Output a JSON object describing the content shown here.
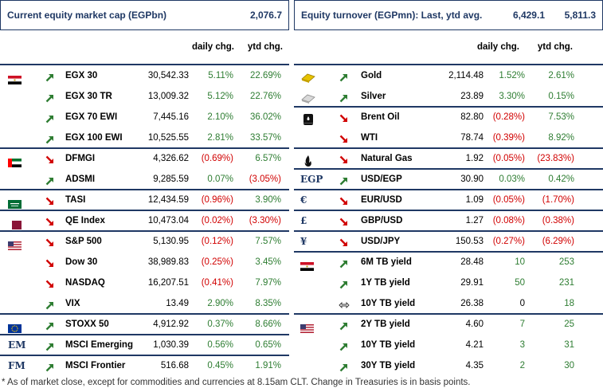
{
  "left": {
    "title": "Current equity market cap (EGPbn)",
    "title_value": "2,076.7",
    "col_daily": "daily chg.",
    "col_ytd": "ytd chg.",
    "rows": [
      {
        "flag": "egypt",
        "dir": "up",
        "name": "EGX 30",
        "value": "30,542.33",
        "daily": "5.11%",
        "daily_s": "pos",
        "ytd": "22.69%",
        "ytd_s": "pos"
      },
      {
        "flag": "",
        "dir": "up",
        "name": "EGX 30 TR",
        "value": "13,009.32",
        "daily": "5.12%",
        "daily_s": "pos",
        "ytd": "22.76%",
        "ytd_s": "pos"
      },
      {
        "flag": "",
        "dir": "up",
        "name": "EGX 70 EWI",
        "value": "7,445.16",
        "daily": "2.10%",
        "daily_s": "pos",
        "ytd": "36.02%",
        "ytd_s": "pos"
      },
      {
        "flag": "",
        "dir": "up",
        "name": "EGX 100 EWI",
        "value": "10,525.55",
        "daily": "2.81%",
        "daily_s": "pos",
        "ytd": "33.57%",
        "ytd_s": "pos"
      },
      {
        "flag": "uae",
        "dir": "down",
        "name": "DFMGI",
        "value": "4,326.62",
        "daily": "(0.69%)",
        "daily_s": "neg",
        "ytd": "6.57%",
        "ytd_s": "pos"
      },
      {
        "flag": "",
        "dir": "up",
        "name": "ADSMI",
        "value": "9,285.59",
        "daily": "0.07%",
        "daily_s": "pos",
        "ytd": "(3.05%)",
        "ytd_s": "neg"
      },
      {
        "flag": "saudi",
        "dir": "down",
        "name": "TASI",
        "value": "12,434.59",
        "daily": "(0.96%)",
        "daily_s": "neg",
        "ytd": "3.90%",
        "ytd_s": "pos"
      },
      {
        "flag": "qatar",
        "dir": "down",
        "name": "QE Index",
        "value": "10,473.04",
        "daily": "(0.02%)",
        "daily_s": "neg",
        "ytd": "(3.30%)",
        "ytd_s": "neg"
      },
      {
        "flag": "usa",
        "dir": "down",
        "name": "S&P 500",
        "value": "5,130.95",
        "daily": "(0.12%)",
        "daily_s": "neg",
        "ytd": "7.57%",
        "ytd_s": "pos"
      },
      {
        "flag": "",
        "dir": "down",
        "name": "Dow 30",
        "value": "38,989.83",
        "daily": "(0.25%)",
        "daily_s": "neg",
        "ytd": "3.45%",
        "ytd_s": "pos"
      },
      {
        "flag": "",
        "dir": "down",
        "name": "NASDAQ",
        "value": "16,207.51",
        "daily": "(0.41%)",
        "daily_s": "neg",
        "ytd": "7.97%",
        "ytd_s": "pos"
      },
      {
        "flag": "",
        "dir": "up",
        "name": "VIX",
        "value": "13.49",
        "daily": "2.90%",
        "daily_s": "pos",
        "ytd": "8.35%",
        "ytd_s": "pos"
      },
      {
        "flag": "eu",
        "dir": "up",
        "name": "STOXX 50",
        "value": "4,912.92",
        "daily": "0.37%",
        "daily_s": "pos",
        "ytd": "8.66%",
        "ytd_s": "pos"
      },
      {
        "flag": "text",
        "flag_text": "EM",
        "dir": "up",
        "name": "MSCI Emerging",
        "value": "1,030.39",
        "daily": "0.56%",
        "daily_s": "pos",
        "ytd": "0.65%",
        "ytd_s": "pos"
      },
      {
        "flag": "text",
        "flag_text": "FM",
        "dir": "up",
        "name": "MSCI Frontier",
        "value": "516.68",
        "daily": "0.45%",
        "daily_s": "pos",
        "ytd": "1.91%",
        "ytd_s": "pos"
      }
    ],
    "separators_after": [
      3,
      5,
      6,
      7,
      11,
      12,
      13
    ]
  },
  "right": {
    "title": "Equity turnover (EGPmn): Last, ytd avg.",
    "title_last": "6,429.1",
    "title_ytd": "5,811.3",
    "col_daily": "daily chg.",
    "col_ytd": "ytd chg.",
    "rows": [
      {
        "icon": "gold",
        "dir": "up",
        "name": "Gold",
        "value": "2,114.48",
        "daily": "1.52%",
        "daily_s": "pos",
        "ytd": "2.61%",
        "ytd_s": "pos"
      },
      {
        "icon": "silver",
        "dir": "up",
        "name": "Silver",
        "value": "23.89",
        "daily": "3.30%",
        "daily_s": "pos",
        "ytd": "0.15%",
        "ytd_s": "pos"
      },
      {
        "icon": "oil",
        "dir": "down",
        "name": "Brent Oil",
        "value": "82.80",
        "daily": "(0.28%)",
        "daily_s": "neg",
        "ytd": "7.53%",
        "ytd_s": "pos"
      },
      {
        "icon": "",
        "dir": "down",
        "name": "WTI",
        "value": "78.74",
        "daily": "(0.39%)",
        "daily_s": "neg",
        "ytd": "8.92%",
        "ytd_s": "pos"
      },
      {
        "icon": "fire",
        "dir": "down",
        "name": "Natural Gas",
        "value": "1.92",
        "daily": "(0.05%)",
        "daily_s": "neg",
        "ytd": "(23.83%)",
        "ytd_s": "neg"
      },
      {
        "icon": "text",
        "icon_text": "EGP",
        "dir": "up",
        "name": "USD/EGP",
        "value": "30.90",
        "daily": "0.03%",
        "daily_s": "pos",
        "ytd": "0.42%",
        "ytd_s": "pos"
      },
      {
        "icon": "text",
        "icon_text": "€",
        "dir": "down",
        "name": "EUR/USD",
        "value": "1.09",
        "daily": "(0.05%)",
        "daily_s": "neg",
        "ytd": "(1.70%)",
        "ytd_s": "neg"
      },
      {
        "icon": "text",
        "icon_text": "£",
        "dir": "down",
        "name": "GBP/USD",
        "value": "1.27",
        "daily": "(0.08%)",
        "daily_s": "neg",
        "ytd": "(0.38%)",
        "ytd_s": "neg"
      },
      {
        "icon": "text",
        "icon_text": "¥",
        "dir": "down",
        "name": "USD/JPY",
        "value": "150.53",
        "daily": "(0.27%)",
        "daily_s": "neg",
        "ytd": "(6.29%)",
        "ytd_s": "neg"
      },
      {
        "icon": "egypt",
        "dir": "up",
        "name": "6M TB yield",
        "value": "28.48",
        "daily": "10",
        "daily_s": "pos",
        "ytd": "253",
        "ytd_s": "pos"
      },
      {
        "icon": "",
        "dir": "up",
        "name": "1Y TB yield",
        "value": "29.91",
        "daily": "50",
        "daily_s": "pos",
        "ytd": "231",
        "ytd_s": "pos"
      },
      {
        "icon": "",
        "dir": "flat",
        "name": "10Y TB yield",
        "value": "26.38",
        "daily": "0",
        "daily_s": "neu",
        "ytd": "18",
        "ytd_s": "pos"
      },
      {
        "icon": "usa",
        "dir": "up",
        "name": "2Y TB yield",
        "value": "4.60",
        "daily": "7",
        "daily_s": "pos",
        "ytd": "25",
        "ytd_s": "pos"
      },
      {
        "icon": "",
        "dir": "up",
        "name": "10Y TB yield",
        "value": "4.21",
        "daily": "3",
        "daily_s": "pos",
        "ytd": "31",
        "ytd_s": "pos"
      },
      {
        "icon": "",
        "dir": "up",
        "name": "30Y TB yield",
        "value": "4.35",
        "daily": "2",
        "daily_s": "pos",
        "ytd": "30",
        "ytd_s": "pos"
      }
    ],
    "separators_after": [
      1,
      3,
      4,
      5,
      6,
      7,
      8,
      11
    ]
  },
  "footnote": "* As of market close, except for commodities and currencies at 8.15am CLT. Change in Treasuries is in basis points.",
  "colors": {
    "navy": "#1f3864",
    "positive": "#2e7d32",
    "negative": "#d10000",
    "arrow_up": "#2e7d32",
    "arrow_down": "#d10000"
  }
}
